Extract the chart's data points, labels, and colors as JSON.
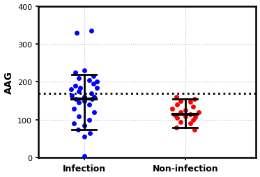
{
  "infection_y": [
    330,
    335,
    225,
    230,
    215,
    210,
    205,
    200,
    195,
    190,
    185,
    185,
    180,
    175,
    170,
    165,
    160,
    160,
    155,
    155,
    150,
    145,
    140,
    130,
    120,
    110,
    100,
    90,
    85,
    75,
    65,
    55,
    5
  ],
  "infection_jitter": [
    -0.07,
    0.07,
    -0.09,
    0.0,
    0.09,
    -0.05,
    0.05,
    0.13,
    0.09,
    -0.09,
    -0.04,
    0.13,
    -0.13,
    -0.05,
    0.07,
    -0.12,
    0.0,
    0.1,
    -0.08,
    0.08,
    0.0,
    -0.05,
    0.05,
    -0.1,
    0.1,
    -0.05,
    0.05,
    -0.1,
    0.0,
    -0.06,
    0.06,
    0.0,
    0.0
  ],
  "infection_mean": 155,
  "infection_sd_upper": 220,
  "infection_sd_lower": 75,
  "noninfection_y": [
    160,
    155,
    150,
    148,
    140,
    135,
    130,
    125,
    120,
    120,
    115,
    112,
    110,
    108,
    105,
    100,
    95,
    90,
    80,
    75
  ],
  "noninfection_jitter": [
    -0.09,
    0.09,
    -0.05,
    0.05,
    -0.08,
    0.08,
    -0.13,
    0.0,
    0.13,
    -0.05,
    0.05,
    -0.1,
    0.0,
    0.1,
    -0.08,
    0.08,
    -0.05,
    0.05,
    -0.09,
    0.09
  ],
  "noninfection_mean": 115,
  "noninfection_sd_upper": 155,
  "noninfection_sd_lower": 80,
  "cutoff_line": 169,
  "ylim": [
    0,
    400
  ],
  "yticks": [
    0,
    100,
    200,
    300,
    400
  ],
  "ylabel": "AAG",
  "xlabel_infection": "Infection",
  "xlabel_noninfection": "Non-infection",
  "dot_color_infection": "#0000FF",
  "dot_color_noninfection": "#FF0000",
  "errorbar_color": "#000000",
  "cutoff_color": "#000000",
  "background_color": "#FFFFFF",
  "grid_color": "#C0C0C0",
  "dot_size": 25,
  "errorbar_lw": 2.0,
  "errorbar_cap": 0.12,
  "infection_x_center": 1,
  "noninfection_x_center": 2,
  "xlim": [
    0.55,
    2.7
  ],
  "xticks": [
    1,
    2
  ]
}
